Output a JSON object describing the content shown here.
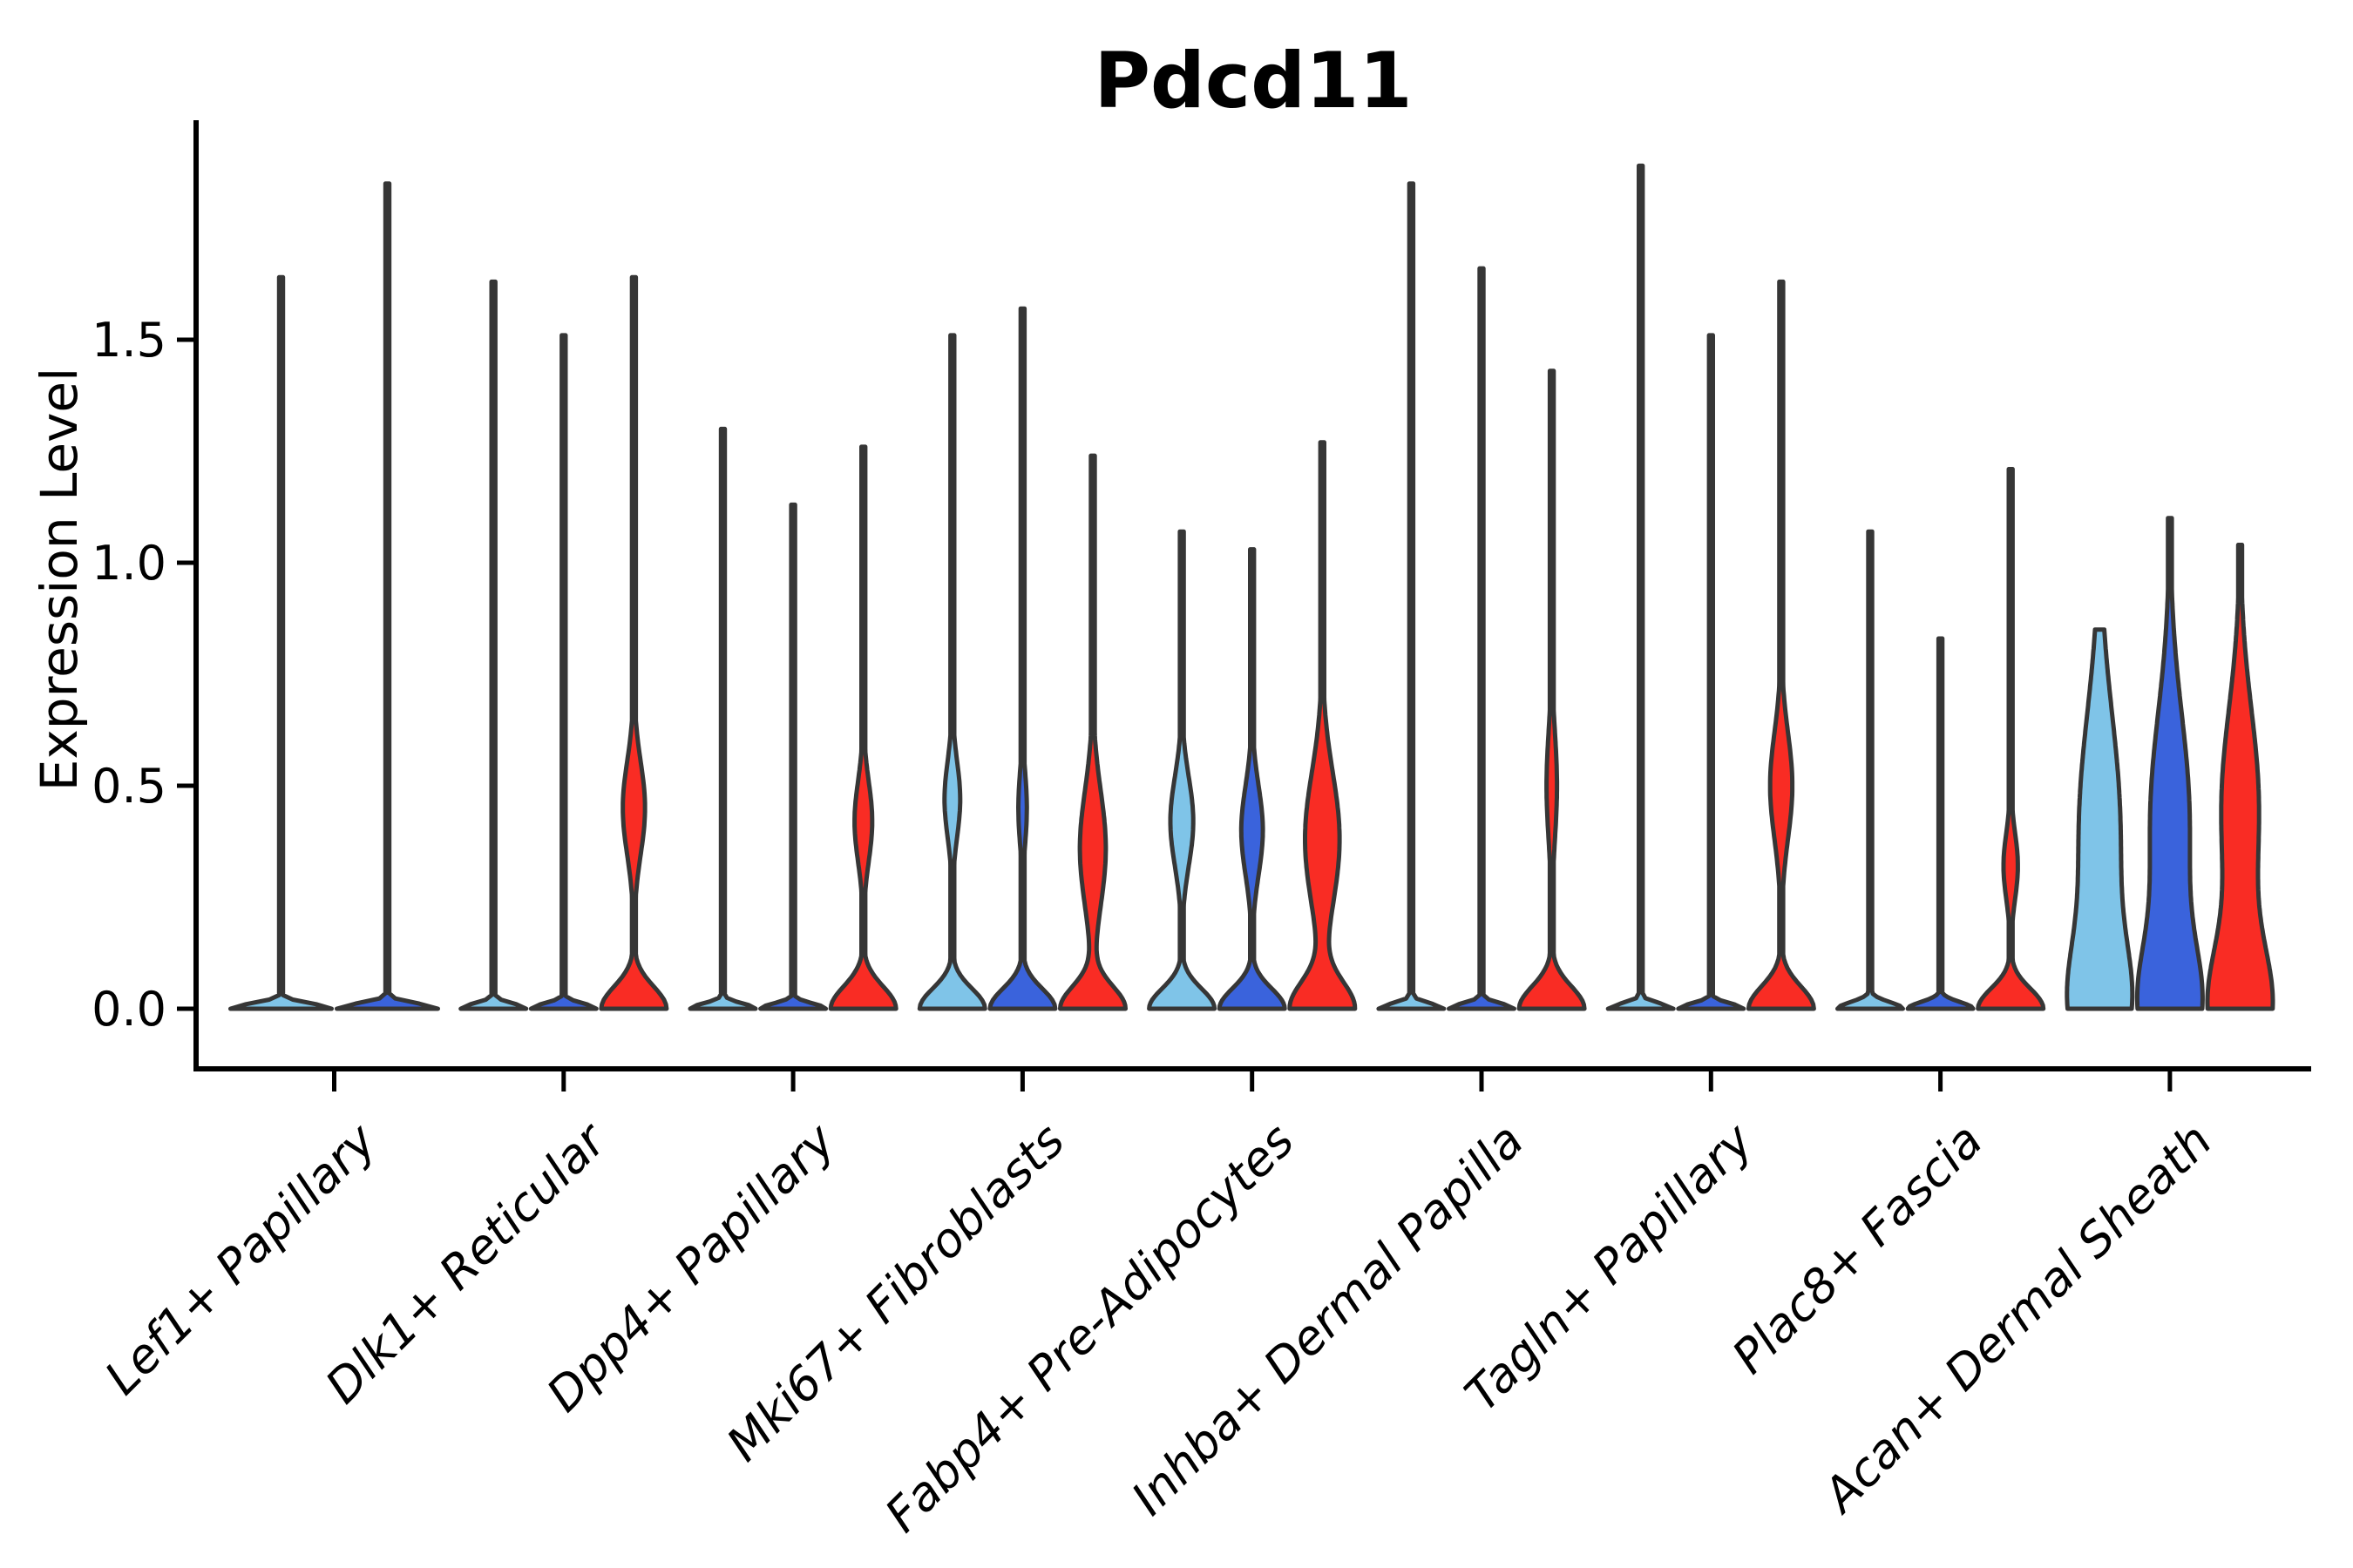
{
  "title": "Pdcd11",
  "chart_data": {
    "type": "violin",
    "title": "Pdcd11",
    "xlabel": "",
    "ylabel": "Expression Level",
    "yticks": [
      0.0,
      0.5,
      1.0,
      1.5
    ],
    "ytick_labels": [
      "0.0",
      "0.5",
      "1.0",
      "1.5"
    ],
    "ylim": [
      -0.13,
      2.0
    ],
    "grid": false,
    "legend": "none",
    "series_order": [
      "light",
      "dark",
      "red"
    ],
    "palette": {
      "light": "#7FC4E8",
      "dark": "#3A63DC",
      "red": "#F92C24",
      "outline": "#363636",
      "axis": "#000000"
    },
    "groups": [
      {
        "category": "Lef1+ Papillary",
        "violins": [
          {
            "series": "light",
            "max": 1.64,
            "profile": [
              {
                "c": 0,
                "s": 0.012,
                "w": 1
              }
            ]
          },
          {
            "series": "dark",
            "max": 1.85,
            "profile": [
              {
                "c": 0,
                "s": 0.012,
                "w": 1
              }
            ]
          }
        ]
      },
      {
        "category": "Dlk1+ Reticular",
        "violins": [
          {
            "series": "light",
            "max": 1.63,
            "profile": [
              {
                "c": 0,
                "s": 0.012,
                "w": 1
              }
            ]
          },
          {
            "series": "dark",
            "max": 1.51,
            "profile": [
              {
                "c": 0,
                "s": 0.012,
                "w": 1
              }
            ]
          },
          {
            "series": "red",
            "max": 1.64,
            "profile": [
              {
                "c": 0,
                "s": 0.05,
                "w": 1
              },
              {
                "c": 0.45,
                "s": 0.105,
                "w": 0.34
              }
            ]
          }
        ]
      },
      {
        "category": "Dpp4+ Papillary",
        "violins": [
          {
            "series": "light",
            "max": 1.3,
            "profile": [
              {
                "c": 0,
                "s": 0.012,
                "w": 1
              }
            ]
          },
          {
            "series": "dark",
            "max": 1.13,
            "profile": [
              {
                "c": 0,
                "s": 0.012,
                "w": 1
              }
            ]
          },
          {
            "series": "red",
            "max": 1.26,
            "profile": [
              {
                "c": 0,
                "s": 0.05,
                "w": 1
              },
              {
                "c": 0.42,
                "s": 0.09,
                "w": 0.27
              }
            ]
          }
        ]
      },
      {
        "category": "Mki67+ Fibroblasts",
        "violins": [
          {
            "series": "light",
            "max": 1.51,
            "profile": [
              {
                "c": 0,
                "s": 0.045,
                "w": 1
              },
              {
                "c": 0.47,
                "s": 0.085,
                "w": 0.24
              }
            ]
          },
          {
            "series": "dark",
            "max": 1.57,
            "profile": [
              {
                "c": 0,
                "s": 0.045,
                "w": 1
              },
              {
                "c": 0.45,
                "s": 0.08,
                "w": 0.13
              }
            ]
          },
          {
            "series": "red",
            "max": 1.24,
            "profile": [
              {
                "c": 0,
                "s": 0.05,
                "w": 1
              },
              {
                "c": 0.36,
                "s": 0.13,
                "w": 0.4
              }
            ]
          }
        ]
      },
      {
        "category": "Fabp4+ Pre-Adipocytes",
        "violins": [
          {
            "series": "light",
            "max": 1.07,
            "profile": [
              {
                "c": 0,
                "s": 0.045,
                "w": 1
              },
              {
                "c": 0.42,
                "s": 0.1,
                "w": 0.35
              }
            ]
          },
          {
            "series": "dark",
            "max": 1.03,
            "profile": [
              {
                "c": 0,
                "s": 0.045,
                "w": 1
              },
              {
                "c": 0.4,
                "s": 0.1,
                "w": 0.33
              }
            ]
          },
          {
            "series": "red",
            "max": 1.27,
            "profile": [
              {
                "c": 0,
                "s": 0.06,
                "w": 1
              },
              {
                "c": 0.38,
                "s": 0.15,
                "w": 0.54
              }
            ]
          }
        ]
      },
      {
        "category": "Inhba+ Dermal Papilla",
        "violins": [
          {
            "series": "light",
            "max": 1.85,
            "profile": [
              {
                "c": 0,
                "s": 0.012,
                "w": 1
              }
            ]
          },
          {
            "series": "dark",
            "max": 1.66,
            "profile": [
              {
                "c": 0,
                "s": 0.012,
                "w": 1
              }
            ]
          },
          {
            "series": "red",
            "max": 1.43,
            "profile": [
              {
                "c": 0,
                "s": 0.05,
                "w": 1
              },
              {
                "c": 0.5,
                "s": 0.12,
                "w": 0.16
              }
            ]
          }
        ]
      },
      {
        "category": "Tagln+ Papillary",
        "violins": [
          {
            "series": "light",
            "max": 1.89,
            "profile": [
              {
                "c": 0,
                "s": 0.012,
                "w": 1
              }
            ]
          },
          {
            "series": "dark",
            "max": 1.51,
            "profile": [
              {
                "c": 0,
                "s": 0.012,
                "w": 1
              }
            ]
          },
          {
            "series": "red",
            "max": 1.63,
            "profile": [
              {
                "c": 0,
                "s": 0.05,
                "w": 1
              },
              {
                "c": 0.5,
                "s": 0.12,
                "w": 0.34
              }
            ]
          }
        ]
      },
      {
        "category": "Plac8+ Fascia",
        "violins": [
          {
            "series": "light",
            "max": 1.07,
            "profile": [
              {
                "c": 0,
                "s": 0.015,
                "w": 1
              }
            ]
          },
          {
            "series": "dark",
            "max": 0.83,
            "profile": [
              {
                "c": 0,
                "s": 0.015,
                "w": 1
              }
            ]
          },
          {
            "series": "red",
            "max": 1.21,
            "profile": [
              {
                "c": 0,
                "s": 0.045,
                "w": 1
              },
              {
                "c": 0.32,
                "s": 0.075,
                "w": 0.22
              }
            ]
          }
        ]
      },
      {
        "category": "Acan+ Dermal Sheath",
        "violins": [
          {
            "series": "light",
            "max": 0.85,
            "profile": [
              {
                "c": 0,
                "s": 0.14,
                "w": 1
              },
              {
                "c": 0.4,
                "s": 0.26,
                "w": 0.8
              }
            ]
          },
          {
            "series": "dark",
            "max": 1.1,
            "profile": [
              {
                "c": 0,
                "s": 0.14,
                "w": 1
              },
              {
                "c": 0.42,
                "s": 0.24,
                "w": 0.7
              }
            ]
          },
          {
            "series": "red",
            "max": 1.04,
            "profile": [
              {
                "c": 0,
                "s": 0.14,
                "w": 1
              },
              {
                "c": 0.45,
                "s": 0.22,
                "w": 0.62
              }
            ]
          }
        ]
      }
    ]
  }
}
